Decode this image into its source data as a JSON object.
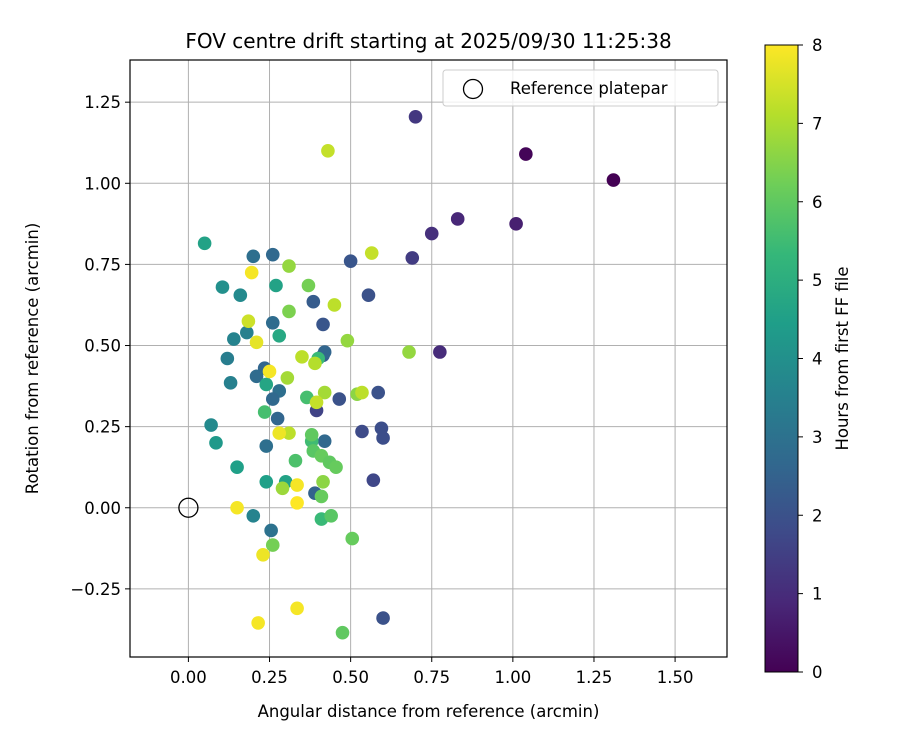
{
  "chart_data": {
    "type": "scatter",
    "title": "FOV centre drift starting at 2025/09/30 11:25:38",
    "xlabel": "Angular distance from reference (arcmin)",
    "ylabel": "Rotation from reference (arcmin)",
    "xlim": [
      -0.18,
      1.66
    ],
    "ylim": [
      -0.46,
      1.38
    ],
    "xticks": [
      0.0,
      0.25,
      0.5,
      0.75,
      1.0,
      1.25,
      1.5
    ],
    "xtick_labels": [
      "0.00",
      "0.25",
      "0.50",
      "0.75",
      "1.00",
      "1.25",
      "1.50"
    ],
    "yticks": [
      -0.25,
      0.0,
      0.25,
      0.5,
      0.75,
      1.0,
      1.25
    ],
    "ytick_labels": [
      "−0.25",
      "0.00",
      "0.25",
      "0.50",
      "0.75",
      "1.00",
      "1.25"
    ],
    "grid": true,
    "legend": {
      "position": "top-right",
      "entries": [
        "Reference platepar"
      ]
    },
    "reference_point": {
      "x": 0.0,
      "y": 0.0,
      "label": "Reference platepar"
    },
    "colorbar": {
      "label": "Hours from first FF file",
      "range": [
        0,
        8
      ],
      "ticks": [
        0,
        1,
        2,
        3,
        4,
        5,
        6,
        7,
        8
      ],
      "colormap": "viridis",
      "colormap_stops": [
        "#440154",
        "#482878",
        "#3e4a89",
        "#31688e",
        "#26828e",
        "#1f9e89",
        "#35b779",
        "#6ece58",
        "#b5de2b",
        "#fde725"
      ]
    },
    "points": [
      {
        "x": 1.31,
        "y": 1.01,
        "c": 0.0
      },
      {
        "x": 1.04,
        "y": 1.09,
        "c": 0.1
      },
      {
        "x": 1.01,
        "y": 0.875,
        "c": 0.7
      },
      {
        "x": 0.83,
        "y": 0.89,
        "c": 0.9
      },
      {
        "x": 0.75,
        "y": 0.845,
        "c": 1.1
      },
      {
        "x": 0.7,
        "y": 1.205,
        "c": 1.3
      },
      {
        "x": 0.69,
        "y": 0.77,
        "c": 1.4
      },
      {
        "x": 0.775,
        "y": 0.48,
        "c": 1.0
      },
      {
        "x": 0.5,
        "y": 0.76,
        "c": 2.1
      },
      {
        "x": 0.555,
        "y": 0.655,
        "c": 2.0
      },
      {
        "x": 0.585,
        "y": 0.355,
        "c": 2.0
      },
      {
        "x": 0.595,
        "y": 0.245,
        "c": 1.9
      },
      {
        "x": 0.6,
        "y": 0.215,
        "c": 1.9
      },
      {
        "x": 0.535,
        "y": 0.235,
        "c": 1.8
      },
      {
        "x": 0.57,
        "y": 0.085,
        "c": 1.7
      },
      {
        "x": 0.6,
        "y": -0.34,
        "c": 2.0
      },
      {
        "x": 0.465,
        "y": 0.335,
        "c": 2.0
      },
      {
        "x": 0.395,
        "y": 0.3,
        "c": 1.6
      },
      {
        "x": 0.415,
        "y": 0.565,
        "c": 2.1
      },
      {
        "x": 0.385,
        "y": 0.635,
        "c": 2.3
      },
      {
        "x": 0.415,
        "y": 0.47,
        "c": 2.4
      },
      {
        "x": 0.42,
        "y": 0.48,
        "c": 2.6
      },
      {
        "x": 0.42,
        "y": 0.205,
        "c": 2.7
      },
      {
        "x": 0.39,
        "y": 0.045,
        "c": 2.5
      },
      {
        "x": 0.26,
        "y": 0.78,
        "c": 2.7
      },
      {
        "x": 0.2,
        "y": 0.775,
        "c": 2.9
      },
      {
        "x": 0.26,
        "y": 0.57,
        "c": 2.8
      },
      {
        "x": 0.235,
        "y": 0.43,
        "c": 2.6
      },
      {
        "x": 0.21,
        "y": 0.405,
        "c": 2.8
      },
      {
        "x": 0.28,
        "y": 0.36,
        "c": 2.9
      },
      {
        "x": 0.26,
        "y": 0.335,
        "c": 2.7
      },
      {
        "x": 0.275,
        "y": 0.275,
        "c": 2.6
      },
      {
        "x": 0.24,
        "y": 0.19,
        "c": 2.9
      },
      {
        "x": 0.255,
        "y": -0.07,
        "c": 3.0
      },
      {
        "x": 0.2,
        "y": -0.025,
        "c": 3.6
      },
      {
        "x": 0.16,
        "y": 0.655,
        "c": 3.8
      },
      {
        "x": 0.105,
        "y": 0.68,
        "c": 4.0
      },
      {
        "x": 0.18,
        "y": 0.54,
        "c": 3.5
      },
      {
        "x": 0.14,
        "y": 0.52,
        "c": 3.6
      },
      {
        "x": 0.12,
        "y": 0.46,
        "c": 3.4
      },
      {
        "x": 0.13,
        "y": 0.385,
        "c": 3.5
      },
      {
        "x": 0.07,
        "y": 0.255,
        "c": 3.8
      },
      {
        "x": 0.085,
        "y": 0.2,
        "c": 4.3
      },
      {
        "x": 0.15,
        "y": 0.125,
        "c": 4.5
      },
      {
        "x": 0.05,
        "y": 0.815,
        "c": 4.6
      },
      {
        "x": 0.27,
        "y": 0.685,
        "c": 4.6
      },
      {
        "x": 0.28,
        "y": 0.53,
        "c": 4.8
      },
      {
        "x": 0.24,
        "y": 0.38,
        "c": 4.7
      },
      {
        "x": 0.3,
        "y": 0.08,
        "c": 4.6
      },
      {
        "x": 0.24,
        "y": 0.08,
        "c": 4.5
      },
      {
        "x": 0.4,
        "y": 0.46,
        "c": 5.4
      },
      {
        "x": 0.41,
        "y": -0.035,
        "c": 5.4
      },
      {
        "x": 0.235,
        "y": 0.295,
        "c": 5.6
      },
      {
        "x": 0.365,
        "y": 0.34,
        "c": 5.6
      },
      {
        "x": 0.33,
        "y": 0.145,
        "c": 5.7
      },
      {
        "x": 0.38,
        "y": 0.205,
        "c": 5.5
      },
      {
        "x": 0.38,
        "y": 0.225,
        "c": 6.0
      },
      {
        "x": 0.385,
        "y": 0.175,
        "c": 5.9
      },
      {
        "x": 0.41,
        "y": 0.16,
        "c": 6.1
      },
      {
        "x": 0.435,
        "y": 0.14,
        "c": 6.0
      },
      {
        "x": 0.455,
        "y": 0.125,
        "c": 6.1
      },
      {
        "x": 0.41,
        "y": 0.035,
        "c": 6.1
      },
      {
        "x": 0.44,
        "y": -0.025,
        "c": 5.9
      },
      {
        "x": 0.505,
        "y": -0.095,
        "c": 6.1
      },
      {
        "x": 0.475,
        "y": -0.385,
        "c": 6.0
      },
      {
        "x": 0.26,
        "y": -0.115,
        "c": 6.3
      },
      {
        "x": 0.31,
        "y": 0.605,
        "c": 6.4
      },
      {
        "x": 0.37,
        "y": 0.685,
        "c": 6.3
      },
      {
        "x": 0.49,
        "y": 0.515,
        "c": 6.7
      },
      {
        "x": 0.31,
        "y": 0.745,
        "c": 6.7
      },
      {
        "x": 0.305,
        "y": 0.4,
        "c": 6.9
      },
      {
        "x": 0.415,
        "y": 0.08,
        "c": 6.6
      },
      {
        "x": 0.29,
        "y": 0.06,
        "c": 6.8
      },
      {
        "x": 0.52,
        "y": 0.35,
        "c": 6.6
      },
      {
        "x": 0.68,
        "y": 0.48,
        "c": 6.7
      },
      {
        "x": 0.42,
        "y": 0.355,
        "c": 6.9
      },
      {
        "x": 0.39,
        "y": 0.445,
        "c": 7.1
      },
      {
        "x": 0.35,
        "y": 0.465,
        "c": 7.2
      },
      {
        "x": 0.45,
        "y": 0.625,
        "c": 7.2
      },
      {
        "x": 0.565,
        "y": 0.785,
        "c": 7.3
      },
      {
        "x": 0.535,
        "y": 0.355,
        "c": 7.2
      },
      {
        "x": 0.395,
        "y": 0.325,
        "c": 7.3
      },
      {
        "x": 0.31,
        "y": 0.23,
        "c": 7.2
      },
      {
        "x": 0.43,
        "y": 1.1,
        "c": 7.3
      },
      {
        "x": 0.185,
        "y": 0.575,
        "c": 7.4
      },
      {
        "x": 0.21,
        "y": 0.51,
        "c": 7.7
      },
      {
        "x": 0.195,
        "y": 0.725,
        "c": 7.9
      },
      {
        "x": 0.25,
        "y": 0.42,
        "c": 7.9
      },
      {
        "x": 0.28,
        "y": 0.23,
        "c": 7.8
      },
      {
        "x": 0.335,
        "y": 0.07,
        "c": 7.9
      },
      {
        "x": 0.335,
        "y": 0.015,
        "c": 8.0
      },
      {
        "x": 0.15,
        "y": 0.0,
        "c": 7.9
      },
      {
        "x": 0.23,
        "y": -0.145,
        "c": 7.8
      },
      {
        "x": 0.335,
        "y": -0.31,
        "c": 7.9
      },
      {
        "x": 0.215,
        "y": -0.355,
        "c": 7.9
      }
    ]
  }
}
